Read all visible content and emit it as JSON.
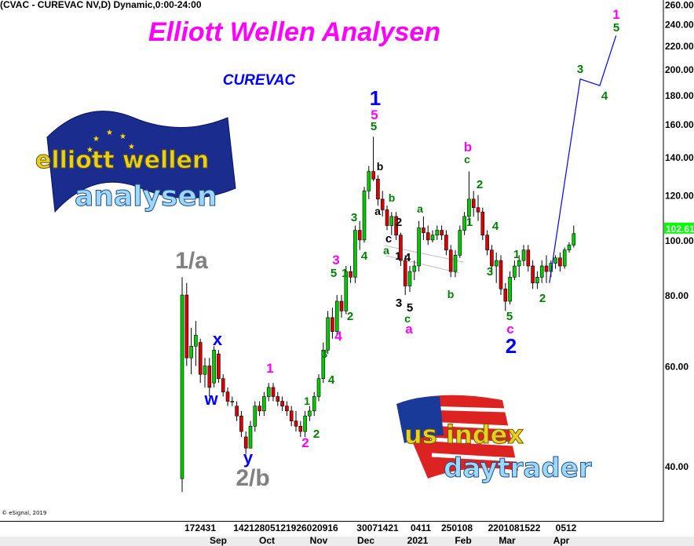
{
  "header": {
    "symbol_line": "(CVAC - CUREVAC NV,D) Dynamic,0:00-24:00"
  },
  "footer": {
    "copyright": "© eSignal, 2019"
  },
  "logos": {
    "eu_logo_text": [
      "elliott wellen",
      "analysen"
    ],
    "us_logo_text": [
      "us index",
      "daytrader"
    ]
  },
  "colors": {
    "up": "#00cc00",
    "down": "#dd0000",
    "magenta": "#ff00ff",
    "blue": "#0000ff",
    "green": "#008000",
    "black": "#000000",
    "gray": "#808080",
    "projection": "#0000ff",
    "last_price_bg": "#00ff00"
  },
  "chart_data": {
    "type": "candlestick",
    "title": "Elliott Wellen Analysen",
    "subtitle": "CUREVAC",
    "y_scale": "log",
    "ylim": [
      34,
      262
    ],
    "y_ticks": [
      "260.00",
      "240.00",
      "220.00",
      "200.00",
      "180.00",
      "160.00",
      "140.00",
      "120.00",
      "100.00",
      "80.00",
      "60.00",
      "40.00"
    ],
    "y_tick_values": [
      260,
      240,
      220,
      200,
      180,
      160,
      140,
      120,
      100,
      80,
      60,
      40
    ],
    "last_price": "102.61",
    "x_tick_groups": [
      "172431",
      "14212805121926020916",
      "30071421",
      "0411",
      "250108",
      "2201081522",
      "0512"
    ],
    "x_months": [
      "Sep",
      "Oct",
      "Nov",
      "Dec",
      "2021",
      "Feb",
      "Mar",
      "Apr"
    ],
    "grid": false,
    "candles": [
      [
        38,
        86,
        36,
        80
      ],
      [
        80,
        84,
        60,
        62
      ],
      [
        62,
        70,
        58,
        65
      ],
      [
        65,
        72,
        60,
        68
      ],
      [
        66,
        67,
        56,
        58
      ],
      [
        58,
        62,
        55,
        60
      ],
      [
        60,
        62,
        53,
        55
      ],
      [
        56,
        65,
        55,
        64
      ],
      [
        63,
        64,
        56,
        57
      ],
      [
        57,
        58,
        53,
        54
      ],
      [
        54,
        55,
        51,
        52
      ],
      [
        52,
        53,
        51,
        52
      ],
      [
        51,
        52,
        48,
        49
      ],
      [
        49,
        50,
        45,
        46
      ],
      [
        45,
        46,
        42,
        43
      ],
      [
        43,
        48,
        43,
        47
      ],
      [
        47,
        52,
        46,
        51
      ],
      [
        51,
        52,
        49,
        50
      ],
      [
        50,
        54,
        49,
        53
      ],
      [
        53,
        56,
        52,
        55
      ],
      [
        55,
        56,
        52,
        53
      ],
      [
        53,
        54,
        51,
        52
      ],
      [
        52,
        53,
        50,
        51
      ],
      [
        51,
        52,
        49,
        50
      ],
      [
        50,
        51,
        47,
        48
      ],
      [
        48,
        50,
        46,
        47
      ],
      [
        47,
        48,
        45,
        46
      ],
      [
        46,
        50,
        45,
        49
      ],
      [
        49,
        51,
        48,
        50
      ],
      [
        50,
        54,
        49,
        53
      ],
      [
        53,
        58,
        52,
        57
      ],
      [
        57,
        66,
        56,
        64
      ],
      [
        64,
        75,
        63,
        73
      ],
      [
        73,
        76,
        67,
        69
      ],
      [
        69,
        80,
        68,
        78
      ],
      [
        78,
        80,
        73,
        75
      ],
      [
        75,
        90,
        74,
        88
      ],
      [
        88,
        90,
        84,
        86
      ],
      [
        86,
        106,
        84,
        104
      ],
      [
        104,
        108,
        96,
        100
      ],
      [
        100,
        124,
        99,
        122
      ],
      [
        122,
        135,
        118,
        132
      ],
      [
        132,
        152,
        127,
        128
      ],
      [
        128,
        130,
        115,
        118
      ],
      [
        118,
        122,
        110,
        113
      ],
      [
        113,
        115,
        104,
        106
      ],
      [
        106,
        112,
        102,
        110
      ],
      [
        110,
        112,
        100,
        102
      ],
      [
        102,
        103,
        90,
        92
      ],
      [
        92,
        94,
        80,
        83
      ],
      [
        83,
        90,
        81,
        88
      ],
      [
        88,
        92,
        85,
        90
      ],
      [
        90,
        108,
        88,
        105
      ],
      [
        105,
        110,
        100,
        103
      ],
      [
        103,
        106,
        98,
        100
      ],
      [
        100,
        104,
        99,
        102
      ],
      [
        102,
        106,
        100,
        104
      ],
      [
        104,
        106,
        100,
        102
      ],
      [
        102,
        104,
        94,
        96
      ],
      [
        96,
        98,
        86,
        88
      ],
      [
        88,
        96,
        86,
        94
      ],
      [
        94,
        106,
        93,
        104
      ],
      [
        104,
        112,
        102,
        110
      ],
      [
        110,
        132,
        106,
        118
      ],
      [
        118,
        122,
        110,
        114
      ],
      [
        114,
        120,
        108,
        112
      ],
      [
        112,
        114,
        100,
        102
      ],
      [
        102,
        104,
        94,
        96
      ],
      [
        96,
        98,
        88,
        90
      ],
      [
        90,
        95,
        84,
        92
      ],
      [
        92,
        94,
        80,
        82
      ],
      [
        82,
        84,
        75,
        78
      ],
      [
        78,
        88,
        77,
        86
      ],
      [
        86,
        92,
        85,
        90
      ],
      [
        90,
        94,
        86,
        92
      ],
      [
        92,
        98,
        90,
        96
      ],
      [
        96,
        98,
        88,
        90
      ],
      [
        90,
        92,
        82,
        84
      ],
      [
        84,
        88,
        82,
        86
      ],
      [
        86,
        92,
        84,
        90
      ],
      [
        90,
        94,
        84,
        88
      ],
      [
        88,
        92,
        86,
        91
      ],
      [
        91,
        94,
        89,
        93
      ],
      [
        93,
        95,
        88,
        90
      ],
      [
        90,
        97,
        89,
        96
      ],
      [
        96,
        99,
        95,
        98
      ],
      [
        98,
        106,
        97,
        102.61
      ]
    ],
    "projection": [
      {
        "date": "2021-03-28",
        "price": 84
      },
      {
        "date": "2021-04-16",
        "price": 192
      },
      {
        "date": "2021-04-28",
        "price": 187
      },
      {
        "date": "2021-05-08",
        "price": 229
      }
    ],
    "wave_labels": [
      {
        "text": "1",
        "color": "magenta"
      },
      {
        "text": "5",
        "color": "green"
      },
      {
        "text": "3",
        "color": "green"
      },
      {
        "text": "4",
        "color": "green"
      },
      {
        "text": "1",
        "color": "blue"
      },
      {
        "text": "5",
        "color": "magenta"
      },
      {
        "text": "5",
        "color": "green"
      },
      {
        "text": "b",
        "color": "black"
      },
      {
        "text": "a",
        "color": "black"
      },
      {
        "text": "b",
        "color": "green"
      },
      {
        "text": "2",
        "color": "black"
      },
      {
        "text": "c",
        "color": "black"
      },
      {
        "text": "a",
        "color": "green"
      },
      {
        "text": "1",
        "color": "black"
      },
      {
        "text": "4",
        "color": "black"
      },
      {
        "text": "3",
        "color": "black"
      },
      {
        "text": "5",
        "color": "black"
      },
      {
        "text": "c",
        "color": "green"
      },
      {
        "text": "a",
        "color": "magenta"
      },
      {
        "text": "a",
        "color": "green"
      },
      {
        "text": "b",
        "color": "green"
      },
      {
        "text": "b",
        "color": "magenta"
      },
      {
        "text": "c",
        "color": "green"
      },
      {
        "text": "2",
        "color": "green"
      },
      {
        "text": "1",
        "color": "green"
      },
      {
        "text": "4",
        "color": "green"
      },
      {
        "text": "3",
        "color": "green"
      },
      {
        "text": "1",
        "color": "green"
      },
      {
        "text": "5",
        "color": "green"
      },
      {
        "text": "c",
        "color": "magenta"
      },
      {
        "text": "2",
        "color": "blue"
      },
      {
        "text": "2",
        "color": "green"
      },
      {
        "text": "1/a",
        "color": "gray"
      },
      {
        "text": "2/b",
        "color": "gray"
      },
      {
        "text": "x",
        "color": "blue"
      },
      {
        "text": "w",
        "color": "blue"
      },
      {
        "text": "y",
        "color": "blue"
      },
      {
        "text": "1",
        "color": "magenta"
      },
      {
        "text": "2",
        "color": "magenta"
      },
      {
        "text": "1",
        "color": "green"
      },
      {
        "text": "2",
        "color": "green"
      },
      {
        "text": "3",
        "color": "green"
      },
      {
        "text": "4",
        "color": "green"
      },
      {
        "text": "4",
        "color": "magenta"
      },
      {
        "text": "2",
        "color": "green"
      },
      {
        "text": "3",
        "color": "magenta"
      },
      {
        "text": "5",
        "color": "green"
      },
      {
        "text": "1",
        "color": "green"
      },
      {
        "text": "3",
        "color": "green"
      },
      {
        "text": "4",
        "color": "green"
      }
    ]
  }
}
